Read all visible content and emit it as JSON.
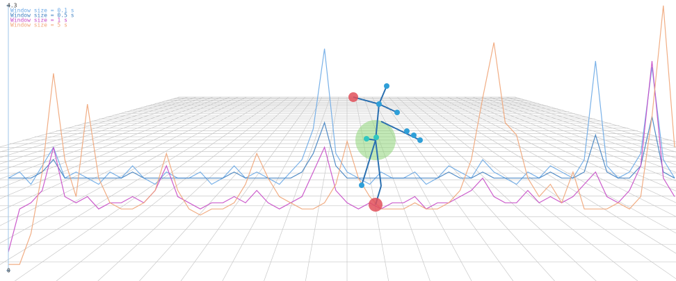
{
  "chart_data": {
    "type": "line",
    "categories": [
      null,
      null,
      null,
      null,
      null,
      null,
      null,
      null,
      null,
      null,
      null,
      null,
      null,
      null,
      null,
      null,
      null,
      null,
      null,
      null,
      null,
      null,
      null,
      null,
      null,
      null,
      null,
      null,
      null,
      null,
      null,
      null,
      null,
      null,
      null,
      null,
      null,
      null,
      null,
      null,
      null,
      null,
      null,
      null,
      null,
      null,
      null,
      null,
      null,
      null,
      null,
      null,
      null,
      null,
      null,
      null,
      null,
      null,
      null,
      null
    ],
    "ylim": [
      0,
      4.3
    ],
    "yticks": [
      0,
      4.3
    ],
    "series": [
      {
        "name": "Window size = 0.1 s",
        "color": "#6aa8e6",
        "values": [
          1.5,
          1.6,
          1.4,
          1.7,
          2.0,
          1.5,
          1.6,
          1.5,
          1.4,
          1.6,
          1.5,
          1.7,
          1.5,
          1.4,
          1.6,
          1.5,
          1.5,
          1.6,
          1.4,
          1.5,
          1.7,
          1.5,
          1.6,
          1.5,
          1.4,
          1.6,
          1.8,
          2.3,
          3.6,
          1.9,
          1.6,
          1.5,
          1.4,
          1.6,
          1.5,
          1.5,
          1.6,
          1.4,
          1.5,
          1.7,
          1.6,
          1.5,
          1.8,
          1.6,
          1.5,
          1.4,
          1.6,
          1.5,
          1.7,
          1.6,
          1.5,
          1.8,
          3.4,
          1.7,
          1.5,
          1.6,
          1.9,
          3.3,
          1.8,
          1.5
        ]
      },
      {
        "name": "Window size = 0.5 s",
        "color": "#3f7fc0",
        "values": [
          1.5,
          1.5,
          1.5,
          1.6,
          1.8,
          1.5,
          1.5,
          1.5,
          1.5,
          1.5,
          1.5,
          1.6,
          1.5,
          1.5,
          1.5,
          1.5,
          1.5,
          1.5,
          1.5,
          1.5,
          1.6,
          1.5,
          1.5,
          1.5,
          1.5,
          1.5,
          1.6,
          1.9,
          2.4,
          1.7,
          1.5,
          1.5,
          1.5,
          1.5,
          1.5,
          1.5,
          1.5,
          1.5,
          1.5,
          1.6,
          1.5,
          1.5,
          1.6,
          1.5,
          1.5,
          1.5,
          1.5,
          1.5,
          1.6,
          1.5,
          1.5,
          1.6,
          2.2,
          1.6,
          1.5,
          1.5,
          1.7,
          2.5,
          1.6,
          1.5
        ]
      },
      {
        "name": "Window size = 1 s",
        "color": "#c64ac6",
        "values": [
          0.3,
          1.0,
          1.1,
          1.3,
          2.0,
          1.2,
          1.1,
          1.2,
          1.0,
          1.1,
          1.1,
          1.2,
          1.1,
          1.3,
          1.7,
          1.2,
          1.1,
          1.0,
          1.1,
          1.1,
          1.2,
          1.1,
          1.3,
          1.1,
          1.0,
          1.1,
          1.2,
          1.6,
          2.0,
          1.3,
          1.1,
          1.0,
          1.1,
          1.0,
          1.1,
          1.1,
          1.2,
          1.0,
          1.1,
          1.1,
          1.2,
          1.3,
          1.5,
          1.2,
          1.1,
          1.1,
          1.3,
          1.1,
          1.2,
          1.1,
          1.2,
          1.4,
          1.6,
          1.2,
          1.1,
          1.3,
          1.7,
          3.4,
          1.5,
          1.2
        ]
      },
      {
        "name": "Window size = 5 s",
        "color": "#f0a477",
        "values": [
          0.1,
          0.1,
          0.6,
          1.6,
          3.2,
          1.8,
          1.2,
          2.7,
          1.5,
          1.1,
          1.0,
          1.0,
          1.1,
          1.3,
          1.9,
          1.3,
          1.0,
          0.9,
          1.0,
          1.0,
          1.1,
          1.4,
          1.9,
          1.5,
          1.2,
          1.1,
          1.0,
          1.0,
          1.1,
          1.4,
          2.1,
          1.5,
          1.2,
          1.0,
          1.0,
          1.0,
          1.1,
          1.0,
          1.0,
          1.1,
          1.3,
          1.8,
          2.8,
          3.7,
          2.4,
          2.2,
          1.5,
          1.2,
          1.4,
          1.1,
          1.6,
          1.0,
          1.0,
          1.0,
          1.1,
          1.0,
          1.2,
          2.5,
          4.3,
          2.0
        ]
      }
    ]
  }
}
